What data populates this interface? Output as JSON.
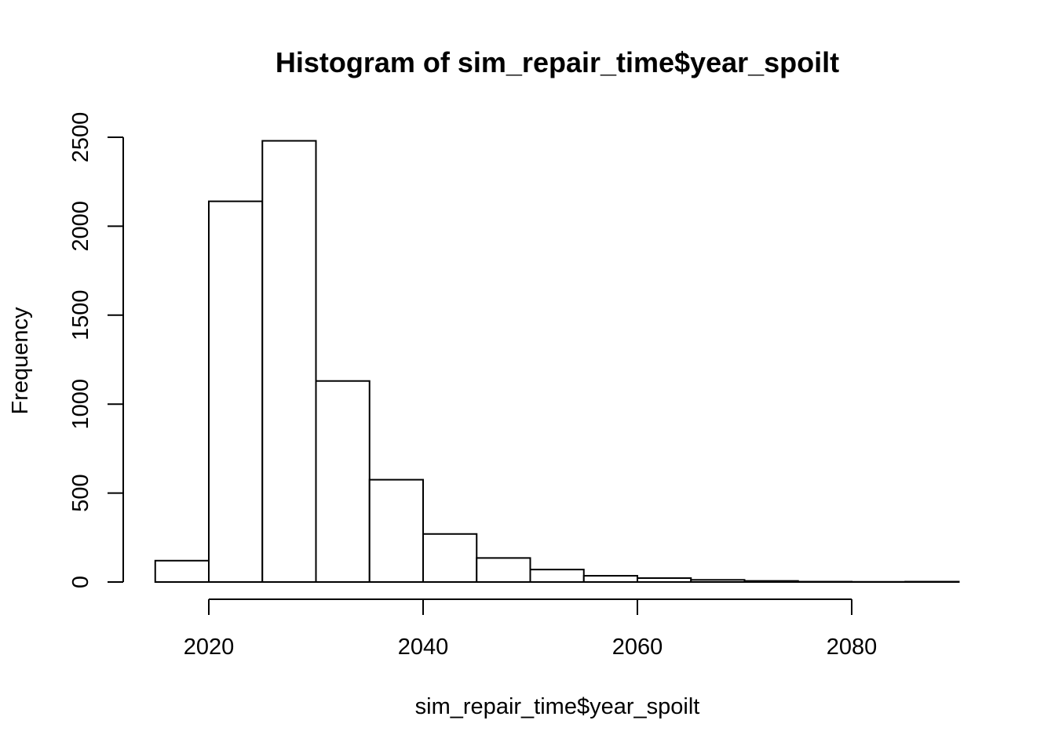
{
  "chart_data": {
    "type": "bar",
    "title": "Histogram of sim_repair_time$year_spoilt",
    "xlabel": "sim_repair_time$year_spoilt",
    "ylabel": "Frequency",
    "bin_edges": [
      2015,
      2020,
      2025,
      2030,
      2035,
      2040,
      2045,
      2050,
      2055,
      2060,
      2065,
      2070,
      2075,
      2080,
      2085,
      2090
    ],
    "values": [
      120,
      2140,
      2480,
      1130,
      575,
      270,
      135,
      70,
      35,
      22,
      12,
      6,
      2,
      1,
      2
    ],
    "xlim": [
      2015,
      2090
    ],
    "ylim": [
      0,
      2500
    ],
    "x_ticks": [
      2020,
      2040,
      2060,
      2080
    ],
    "x_tick_labels": [
      "2020",
      "2040",
      "2060",
      "2080"
    ],
    "y_ticks": [
      0,
      500,
      1000,
      1500,
      2000,
      2500
    ],
    "y_tick_labels": [
      "0",
      "500",
      "1000",
      "1500",
      "2000",
      "2500"
    ],
    "grid": false,
    "bar_fill": "#ffffff",
    "bar_stroke": "#000000"
  }
}
